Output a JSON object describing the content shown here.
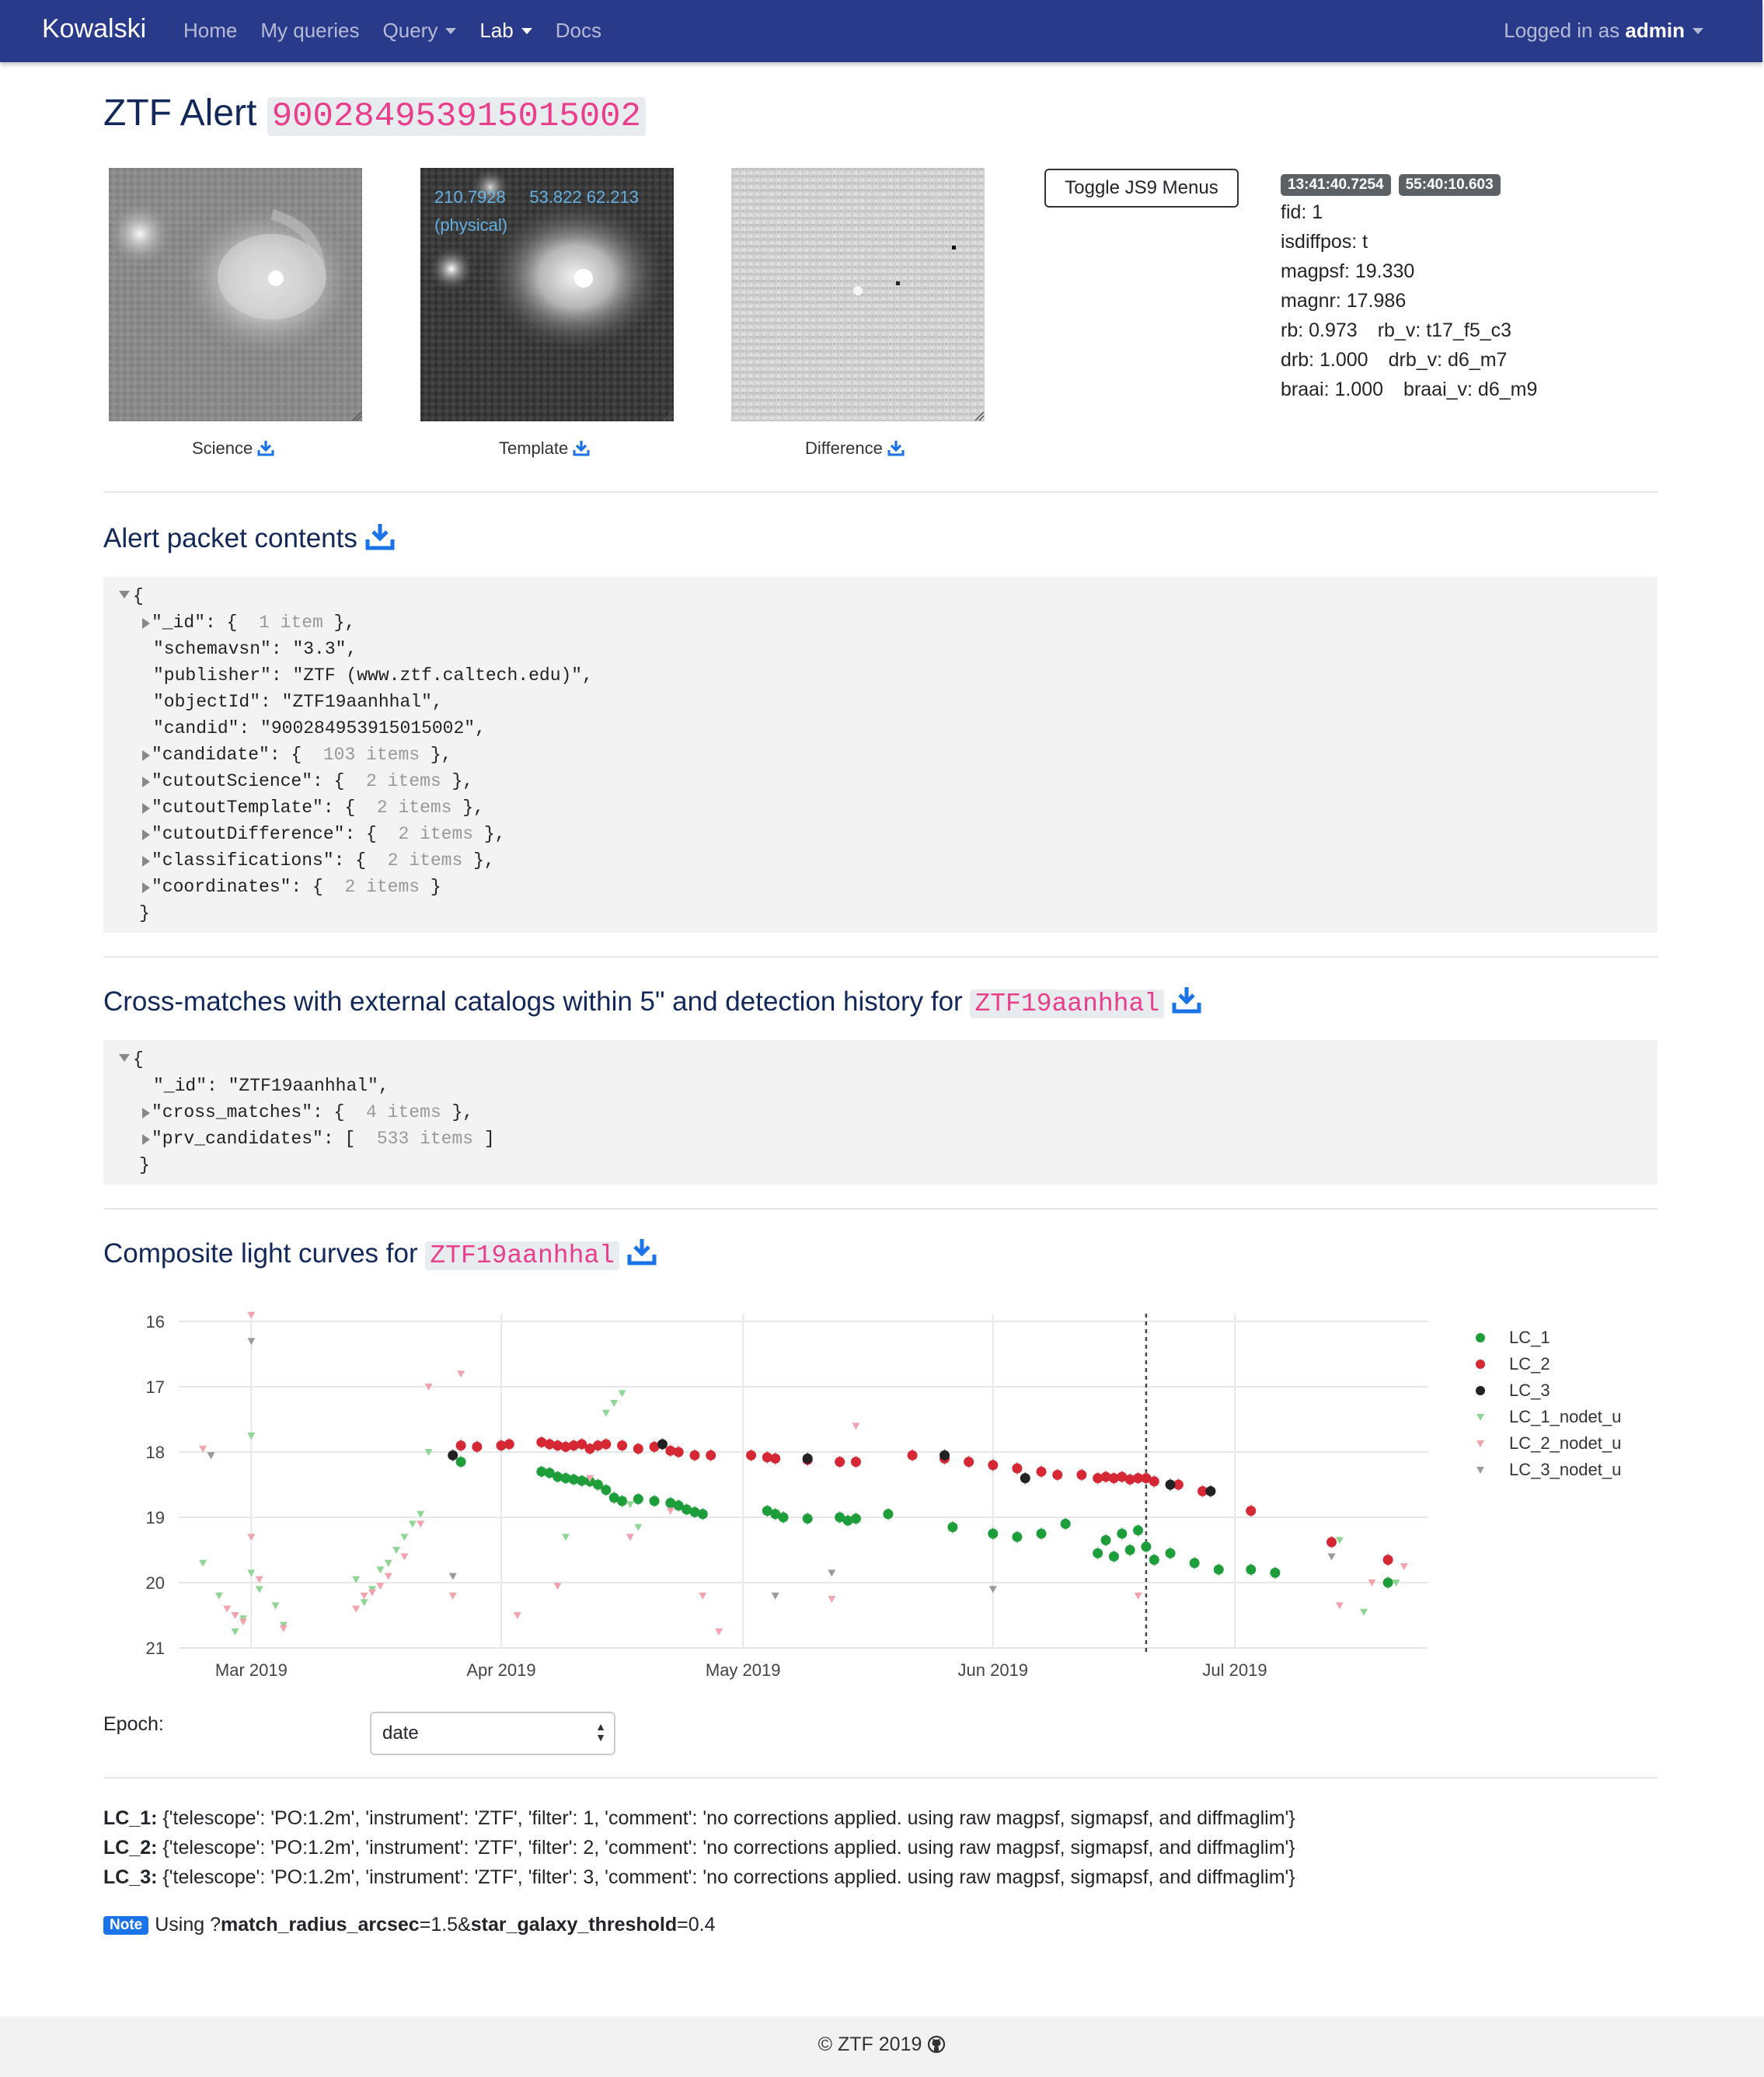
{
  "navbar": {
    "brand": "Kowalski",
    "links": [
      {
        "label": "Home"
      },
      {
        "label": "My queries"
      },
      {
        "label": "Query"
      },
      {
        "label": "Lab"
      },
      {
        "label": "Docs"
      }
    ],
    "user_prefix": "Logged in as",
    "user_name": "admin"
  },
  "alert": {
    "title_prefix": "ZTF Alert",
    "candid": "900284953915015002"
  },
  "cutouts": {
    "science_label": "Science",
    "template_label": "Template",
    "difference_label": "Difference",
    "template_overlay": {
      "ra": "210.7928",
      "dec": "53.822",
      "value": "62.213",
      "mode": "(physical)"
    }
  },
  "toggle_button": "Toggle JS9 Menus",
  "meta": {
    "ra_badge": "13:41:40.7254",
    "dec_badge": "55:40:10.603",
    "fid": "fid: 1",
    "isdiffpos": "isdiffpos: t",
    "magpsf": "magpsf: 19.330",
    "magnr": "magnr: 17.986",
    "rb": "rb: 0.973",
    "rb_v": "rb_v: t17_f5_c3",
    "drb": "drb: 1.000",
    "drb_v": "drb_v: d6_m7",
    "braai": "braai: 1.000",
    "braai_v": "braai_v: d6_m9"
  },
  "packet": {
    "heading": "Alert packet contents",
    "lines": [
      {
        "key": "\"_id\"",
        "value": "{ ",
        "count": "1 item",
        "close": " },",
        "expandable": true
      },
      {
        "key": "\"schemavsn\"",
        "value": "\"3.3\",",
        "expandable": false
      },
      {
        "key": "\"publisher\"",
        "value": "\"ZTF (www.ztf.caltech.edu)\",",
        "expandable": false
      },
      {
        "key": "\"objectId\"",
        "value": "\"ZTF19aanhhal\",",
        "expandable": false
      },
      {
        "key": "\"candid\"",
        "value": "\"900284953915015002\",",
        "expandable": false
      },
      {
        "key": "\"candidate\"",
        "value": "{ ",
        "count": "103 items",
        "close": " },",
        "expandable": true
      },
      {
        "key": "\"cutoutScience\"",
        "value": "{ ",
        "count": "2 items",
        "close": " },",
        "expandable": true
      },
      {
        "key": "\"cutoutTemplate\"",
        "value": "{ ",
        "count": "2 items",
        "close": " },",
        "expandable": true
      },
      {
        "key": "\"cutoutDifference\"",
        "value": "{ ",
        "count": "2 items",
        "close": " },",
        "expandable": true
      },
      {
        "key": "\"classifications\"",
        "value": "{ ",
        "count": "2 items",
        "close": " },",
        "expandable": true
      },
      {
        "key": "\"coordinates\"",
        "value": "{ ",
        "count": "2 items",
        "close": " }",
        "expandable": true
      }
    ]
  },
  "crossmatch": {
    "heading": "Cross-matches with external catalogs within 5\" and detection history for",
    "object_id": "ZTF19aanhhal",
    "lines": [
      {
        "key": "\"_id\"",
        "value": "\"ZTF19aanhhal\",",
        "expandable": false
      },
      {
        "key": "\"cross_matches\"",
        "value": "{ ",
        "count": "4 items",
        "close": " },",
        "expandable": true
      },
      {
        "key": "\"prv_candidates\"",
        "value": "[ ",
        "count": "533 items",
        "close": " ]",
        "expandable": true
      }
    ]
  },
  "lightcurve": {
    "heading": "Composite light curves for",
    "object_id": "ZTF19aanhhal"
  },
  "chart_data": {
    "type": "scatter",
    "x_type": "date",
    "xlim": [
      "2019-02-20",
      "2019-07-25"
    ],
    "ylim": [
      21,
      16
    ],
    "yticks": [
      16,
      17,
      18,
      19,
      20,
      21
    ],
    "xticks": [
      {
        "label": "Mar 2019",
        "date": "2019-03-01"
      },
      {
        "label": "Apr 2019",
        "date": "2019-04-01"
      },
      {
        "label": "May 2019",
        "date": "2019-05-01"
      },
      {
        "label": "Jun 2019",
        "date": "2019-06-01"
      },
      {
        "label": "Jul 2019",
        "date": "2019-07-01"
      }
    ],
    "vline_date": "2019-06-20",
    "grid": true,
    "legend_position": "right",
    "series": [
      {
        "name": "LC_1",
        "marker": "circle",
        "color": "#1e9e3a",
        "points": [
          [
            "2019-03-27",
            18.15
          ],
          [
            "2019-04-06",
            18.3
          ],
          [
            "2019-04-07",
            18.32
          ],
          [
            "2019-04-08",
            18.38
          ],
          [
            "2019-04-09",
            18.4
          ],
          [
            "2019-04-10",
            18.42
          ],
          [
            "2019-04-11",
            18.44
          ],
          [
            "2019-04-12",
            18.45
          ],
          [
            "2019-04-13",
            18.5
          ],
          [
            "2019-04-14",
            18.58
          ],
          [
            "2019-04-15",
            18.7
          ],
          [
            "2019-04-16",
            18.75
          ],
          [
            "2019-04-18",
            18.72
          ],
          [
            "2019-04-20",
            18.75
          ],
          [
            "2019-04-22",
            18.78
          ],
          [
            "2019-04-23",
            18.82
          ],
          [
            "2019-04-24",
            18.88
          ],
          [
            "2019-04-25",
            18.92
          ],
          [
            "2019-04-26",
            18.95
          ],
          [
            "2019-05-04",
            18.9
          ],
          [
            "2019-05-05",
            18.95
          ],
          [
            "2019-05-06",
            19.0
          ],
          [
            "2019-05-09",
            19.02
          ],
          [
            "2019-05-13",
            19.0
          ],
          [
            "2019-05-14",
            19.05
          ],
          [
            "2019-05-15",
            19.02
          ],
          [
            "2019-05-19",
            18.95
          ],
          [
            "2019-05-27",
            19.15
          ],
          [
            "2019-06-01",
            19.25
          ],
          [
            "2019-06-04",
            19.3
          ],
          [
            "2019-06-07",
            19.25
          ],
          [
            "2019-06-10",
            19.1
          ],
          [
            "2019-06-14",
            19.55
          ],
          [
            "2019-06-15",
            19.35
          ],
          [
            "2019-06-16",
            19.6
          ],
          [
            "2019-06-17",
            19.25
          ],
          [
            "2019-06-18",
            19.5
          ],
          [
            "2019-06-19",
            19.2
          ],
          [
            "2019-06-20",
            19.45
          ],
          [
            "2019-06-21",
            19.65
          ],
          [
            "2019-06-23",
            19.55
          ],
          [
            "2019-06-26",
            19.7
          ],
          [
            "2019-06-29",
            19.8
          ],
          [
            "2019-07-03",
            19.8
          ],
          [
            "2019-07-06",
            19.85
          ],
          [
            "2019-07-20",
            20.0
          ]
        ]
      },
      {
        "name": "LC_2",
        "marker": "circle",
        "color": "#d62735",
        "points": [
          [
            "2019-03-27",
            17.9
          ],
          [
            "2019-03-29",
            17.92
          ],
          [
            "2019-04-01",
            17.9
          ],
          [
            "2019-04-02",
            17.88
          ],
          [
            "2019-04-06",
            17.85
          ],
          [
            "2019-04-07",
            17.88
          ],
          [
            "2019-04-08",
            17.9
          ],
          [
            "2019-04-09",
            17.92
          ],
          [
            "2019-04-10",
            17.9
          ],
          [
            "2019-04-11",
            17.88
          ],
          [
            "2019-04-12",
            17.95
          ],
          [
            "2019-04-13",
            17.9
          ],
          [
            "2019-04-14",
            17.88
          ],
          [
            "2019-04-16",
            17.9
          ],
          [
            "2019-04-18",
            17.95
          ],
          [
            "2019-04-20",
            17.92
          ],
          [
            "2019-04-22",
            17.98
          ],
          [
            "2019-04-23",
            18.0
          ],
          [
            "2019-04-25",
            18.05
          ],
          [
            "2019-04-27",
            18.05
          ],
          [
            "2019-05-02",
            18.05
          ],
          [
            "2019-05-04",
            18.08
          ],
          [
            "2019-05-05",
            18.1
          ],
          [
            "2019-05-09",
            18.12
          ],
          [
            "2019-05-13",
            18.15
          ],
          [
            "2019-05-15",
            18.15
          ],
          [
            "2019-05-22",
            18.05
          ],
          [
            "2019-05-26",
            18.1
          ],
          [
            "2019-05-29",
            18.15
          ],
          [
            "2019-06-01",
            18.2
          ],
          [
            "2019-06-04",
            18.25
          ],
          [
            "2019-06-07",
            18.3
          ],
          [
            "2019-06-09",
            18.35
          ],
          [
            "2019-06-12",
            18.35
          ],
          [
            "2019-06-14",
            18.4
          ],
          [
            "2019-06-15",
            18.38
          ],
          [
            "2019-06-16",
            18.4
          ],
          [
            "2019-06-17",
            18.38
          ],
          [
            "2019-06-18",
            18.42
          ],
          [
            "2019-06-19",
            18.4
          ],
          [
            "2019-06-20",
            18.4
          ],
          [
            "2019-06-21",
            18.45
          ],
          [
            "2019-06-24",
            18.5
          ],
          [
            "2019-06-27",
            18.6
          ],
          [
            "2019-07-03",
            18.9
          ],
          [
            "2019-07-13",
            19.38
          ],
          [
            "2019-07-20",
            19.65
          ]
        ]
      },
      {
        "name": "LC_3",
        "marker": "circle",
        "color": "#222222",
        "points": [
          [
            "2019-03-26",
            18.05
          ],
          [
            "2019-04-21",
            17.88
          ],
          [
            "2019-05-09",
            18.1
          ],
          [
            "2019-05-26",
            18.05
          ],
          [
            "2019-06-05",
            18.4
          ],
          [
            "2019-06-23",
            18.5
          ],
          [
            "2019-06-28",
            18.6
          ]
        ]
      },
      {
        "name": "LC_1_nodet_u",
        "marker": "triangle-down",
        "color": "#8fd694",
        "points": [
          [
            "2019-02-23",
            19.7
          ],
          [
            "2019-02-25",
            20.2
          ],
          [
            "2019-02-27",
            20.75
          ],
          [
            "2019-02-28",
            20.55
          ],
          [
            "2019-03-01",
            17.75
          ],
          [
            "2019-03-01",
            19.85
          ],
          [
            "2019-03-02",
            20.1
          ],
          [
            "2019-03-04",
            20.35
          ],
          [
            "2019-03-05",
            20.65
          ],
          [
            "2019-03-14",
            19.95
          ],
          [
            "2019-03-15",
            20.3
          ],
          [
            "2019-03-16",
            20.1
          ],
          [
            "2019-03-17",
            19.8
          ],
          [
            "2019-03-18",
            19.7
          ],
          [
            "2019-03-19",
            19.5
          ],
          [
            "2019-03-20",
            19.3
          ],
          [
            "2019-03-21",
            19.1
          ],
          [
            "2019-03-22",
            18.95
          ],
          [
            "2019-03-23",
            18.0
          ],
          [
            "2019-04-09",
            19.3
          ],
          [
            "2019-04-14",
            17.4
          ],
          [
            "2019-04-15",
            17.25
          ],
          [
            "2019-04-16",
            17.1
          ],
          [
            "2019-04-17",
            18.8
          ],
          [
            "2019-04-18",
            19.15
          ],
          [
            "2019-07-14",
            19.35
          ],
          [
            "2019-07-21",
            20.0
          ],
          [
            "2019-07-17",
            20.45
          ]
        ]
      },
      {
        "name": "LC_2_nodet_u",
        "marker": "triangle-down",
        "color": "#f2a3ad",
        "points": [
          [
            "2019-02-23",
            17.95
          ],
          [
            "2019-02-24",
            18.05
          ],
          [
            "2019-02-26",
            20.4
          ],
          [
            "2019-02-27",
            20.5
          ],
          [
            "2019-02-28",
            20.6
          ],
          [
            "2019-03-01",
            15.9
          ],
          [
            "2019-03-01",
            19.3
          ],
          [
            "2019-03-02",
            19.95
          ],
          [
            "2019-03-05",
            20.7
          ],
          [
            "2019-03-14",
            20.4
          ],
          [
            "2019-03-15",
            20.2
          ],
          [
            "2019-03-16",
            20.15
          ],
          [
            "2019-03-17",
            20.05
          ],
          [
            "2019-03-18",
            19.9
          ],
          [
            "2019-03-20",
            19.6
          ],
          [
            "2019-03-22",
            19.1
          ],
          [
            "2019-03-23",
            17.0
          ],
          [
            "2019-03-26",
            20.2
          ],
          [
            "2019-03-27",
            16.8
          ],
          [
            "2019-04-03",
            20.5
          ],
          [
            "2019-04-08",
            20.05
          ],
          [
            "2019-04-12",
            18.4
          ],
          [
            "2019-04-17",
            19.3
          ],
          [
            "2019-04-22",
            18.9
          ],
          [
            "2019-04-26",
            20.2
          ],
          [
            "2019-04-28",
            20.75
          ],
          [
            "2019-05-12",
            20.25
          ],
          [
            "2019-05-15",
            17.6
          ],
          [
            "2019-06-19",
            20.2
          ],
          [
            "2019-07-14",
            20.35
          ],
          [
            "2019-07-18",
            20.0
          ],
          [
            "2019-07-22",
            19.75
          ]
        ]
      },
      {
        "name": "LC_3_nodet_u",
        "marker": "triangle-down",
        "color": "#9a9a9a",
        "points": [
          [
            "2019-02-24",
            18.05
          ],
          [
            "2019-03-01",
            16.3
          ],
          [
            "2019-03-26",
            19.9
          ],
          [
            "2019-05-05",
            20.2
          ],
          [
            "2019-05-12",
            19.85
          ],
          [
            "2019-06-01",
            20.1
          ],
          [
            "2019-07-13",
            19.6
          ]
        ]
      }
    ]
  },
  "epoch": {
    "label": "Epoch:",
    "selected": "date"
  },
  "lc_info": [
    {
      "name": "LC_1:",
      "text": " {'telescope': 'PO:1.2m', 'instrument': 'ZTF', 'filter': 1, 'comment': 'no corrections applied. using raw magpsf, sigmapsf, and diffmaglim'}"
    },
    {
      "name": "LC_2:",
      "text": " {'telescope': 'PO:1.2m', 'instrument': 'ZTF', 'filter': 2, 'comment': 'no corrections applied. using raw magpsf, sigmapsf, and diffmaglim'}"
    },
    {
      "name": "LC_3:",
      "text": " {'telescope': 'PO:1.2m', 'instrument': 'ZTF', 'filter': 3, 'comment': 'no corrections applied. using raw magpsf, sigmapsf, and diffmaglim'}"
    }
  ],
  "note": {
    "badge": "Note",
    "prefix": "Using ?",
    "param1": "match_radius_arcsec",
    "value1": "=1.5&",
    "param2": "star_galaxy_threshold",
    "value2": "=0.4"
  },
  "footer": {
    "text": "© ZTF 2019"
  },
  "colors": {
    "navbar": "#2a3a8a",
    "heading": "#12285a",
    "code": "#e83e8c",
    "link_blue": "#1a73e8"
  }
}
